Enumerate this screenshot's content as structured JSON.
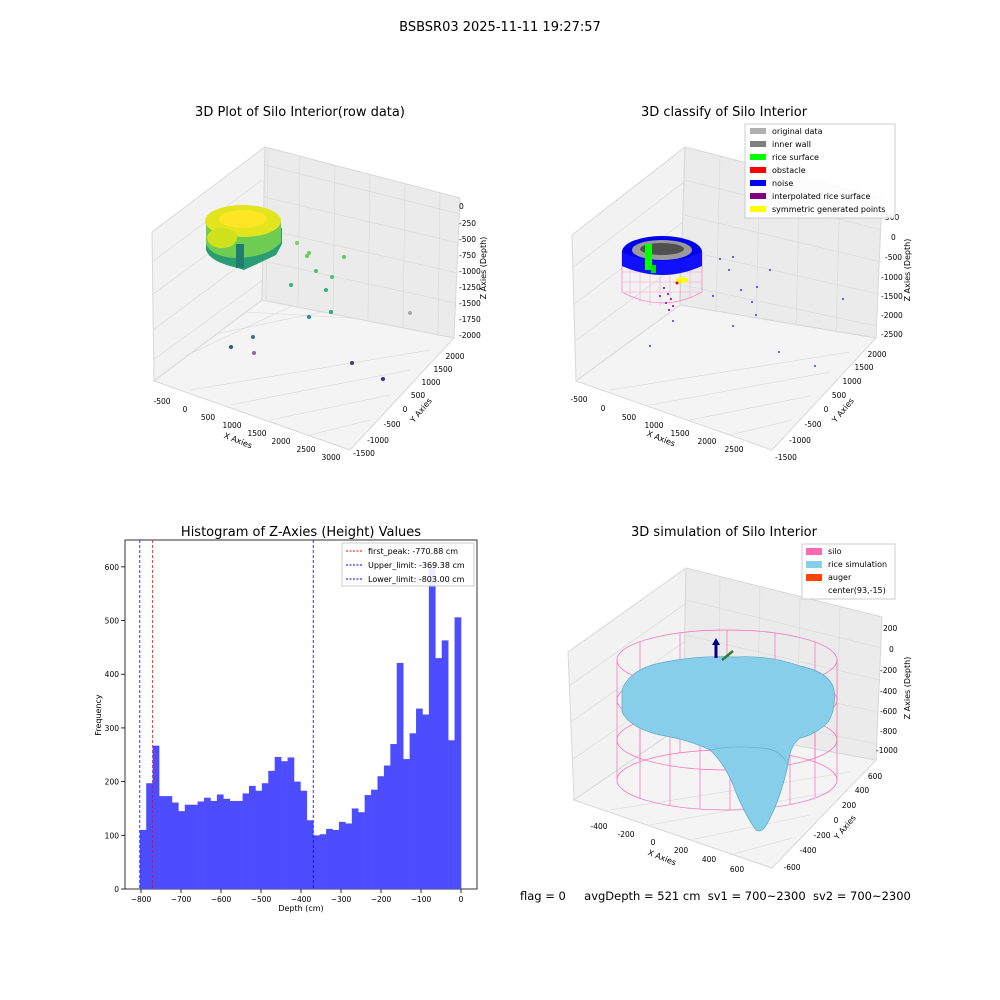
{
  "suptitle": "BSBSR03 2025-11-11 19:27:57",
  "footer": {
    "flag": "flag = 0",
    "avg_depth": "avgDepth = 521 cm",
    "sv1": "sv1 = 700~2300",
    "sv2": "sv2 = 700~2300"
  },
  "chart_data": [
    {
      "type": "scatter",
      "title": "3D Plot of Silo Interior(row data)",
      "xlabel": "X Axies",
      "ylabel": "Y Axies",
      "zlabel": "Z Axies (Depth)",
      "x_ticks": [
        "-500",
        "0",
        "500",
        "1000",
        "1500",
        "2000",
        "2500",
        "3000"
      ],
      "y_ticks": [
        "-1500",
        "-1000",
        "-500",
        "0",
        "500",
        "1000",
        "1500",
        "2000"
      ],
      "z_ticks": [
        "0",
        "-250",
        "-500",
        "-750",
        "-1000",
        "-1250",
        "-1500",
        "-1750",
        "-2000"
      ],
      "colormap": [
        "#440154",
        "#3b528b",
        "#21918c",
        "#5ec962",
        "#fde725"
      ]
    },
    {
      "type": "scatter",
      "title": "3D classify of Silo Interior",
      "xlabel": "X Axies",
      "ylabel": "Y Axies",
      "zlabel": "Z Axies (Depth)",
      "x_ticks": [
        "-500",
        "0",
        "500",
        "1000",
        "1500",
        "2000",
        "2500"
      ],
      "y_ticks": [
        "-1500",
        "-1000",
        "-500",
        "0",
        "500",
        "1000",
        "1500",
        "2000"
      ],
      "z_ticks": [
        "500",
        "0",
        "-500",
        "-1000",
        "-1500",
        "-2000",
        "-2500"
      ],
      "legend_placement": "top-right",
      "legend": [
        {
          "label": "original data",
          "color": "#b0b0b0"
        },
        {
          "label": "inner wall",
          "color": "#808080"
        },
        {
          "label": "rice surface",
          "color": "#00ff00"
        },
        {
          "label": "obstacle",
          "color": "#ff0000"
        },
        {
          "label": "noise",
          "color": "#0000ff"
        },
        {
          "label": "interpolated rice surface",
          "color": "#800080"
        },
        {
          "label": "symmetric generated points",
          "color": "#ffff00"
        }
      ]
    },
    {
      "type": "bar",
      "title": "Histogram of Z-Axies (Height) Values",
      "xlabel": "Depth (cm)",
      "ylabel": "Frequency",
      "xlim": [
        -840,
        40
      ],
      "ylim": [
        0,
        650
      ],
      "x_ticks": [
        -800,
        -700,
        -600,
        -500,
        -400,
        -300,
        -200,
        -100,
        0
      ],
      "y_ticks": [
        0,
        100,
        200,
        300,
        400,
        500,
        600
      ],
      "bar_color": "#4d4dff",
      "bin_start": -803,
      "bin_width": 16.06,
      "values": [
        110,
        197,
        267,
        173,
        173,
        161,
        145,
        157,
        157,
        163,
        170,
        164,
        176,
        168,
        164,
        164,
        178,
        192,
        183,
        197,
        220,
        246,
        238,
        245,
        200,
        183,
        128,
        100,
        102,
        112,
        110,
        125,
        122,
        150,
        143,
        175,
        185,
        210,
        230,
        270,
        421,
        242,
        290,
        336,
        325,
        600,
        430,
        463,
        277,
        506
      ],
      "vlines": [
        {
          "label": "first_peak: -770.88 cm",
          "x": -770.88,
          "color": "#ff0000"
        },
        {
          "label": "Upper_limit: -369.38 cm",
          "x": -369.38,
          "color": "#0000ff"
        },
        {
          "label": "Lower_limit: -803.00 cm",
          "x": -803.0,
          "color": "#0000ff"
        }
      ],
      "legend_placement": "top-right"
    },
    {
      "type": "surface",
      "title": "3D simulation of Silo Interior",
      "xlabel": "X Axies",
      "ylabel": "Y Axies",
      "zlabel": "Z Axies (Depth)",
      "x_ticks": [
        "-400",
        "-200",
        "0",
        "200",
        "400",
        "600"
      ],
      "y_ticks": [
        "-600",
        "-400",
        "-200",
        "0",
        "200",
        "400",
        "600"
      ],
      "z_ticks": [
        "200",
        "0",
        "-200",
        "-400",
        "-600",
        "-800",
        "-1000"
      ],
      "legend_placement": "top-right",
      "legend": [
        {
          "label": "silo",
          "color": "#ff69b4"
        },
        {
          "label": "rice simulation",
          "color": "#87ceeb"
        },
        {
          "label": "auger",
          "color": "#ff4500"
        },
        {
          "label": "center(93,-15)",
          "color": "#ffffff"
        }
      ]
    }
  ]
}
